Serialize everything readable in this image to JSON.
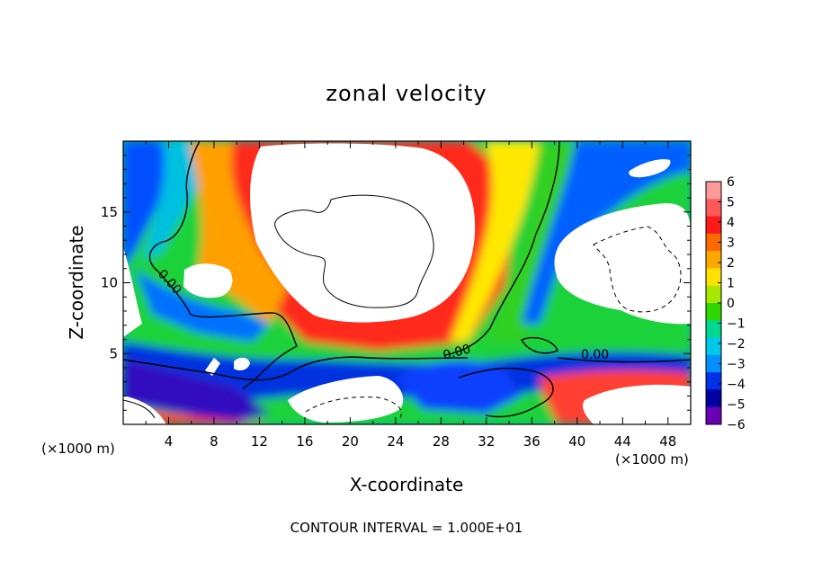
{
  "chart_data": {
    "type": "heatmap",
    "title": "zonal velocity",
    "xlabel": "X-coordinate",
    "ylabel": "Z-coordinate",
    "x_unit": "(×1000 m)",
    "xlim": [
      0,
      50
    ],
    "ylim": [
      0,
      20
    ],
    "x_ticks": [
      4,
      8,
      12,
      16,
      20,
      24,
      28,
      32,
      36,
      40,
      44,
      48
    ],
    "y_ticks": [
      5,
      10,
      15
    ],
    "colorbar": {
      "ticks": [
        6,
        5,
        4,
        3,
        2,
        1,
        0,
        -1,
        -2,
        -3,
        -4,
        -5,
        -6
      ],
      "min": -6,
      "max": 6,
      "colors": [
        "#ff9a9a",
        "#ff5a5a",
        "#ff1a1a",
        "#ff6a00",
        "#ffa800",
        "#ffe000",
        "#a8e800",
        "#2ed800",
        "#00d890",
        "#00c8e8",
        "#0090ff",
        "#0030e8",
        "#0000a0",
        "#6a00b4"
      ]
    },
    "contour_labels": [
      "0.00",
      "0.00",
      "0.00"
    ],
    "footer": "CONTOUR INTERVAL = 1.000E+01"
  }
}
